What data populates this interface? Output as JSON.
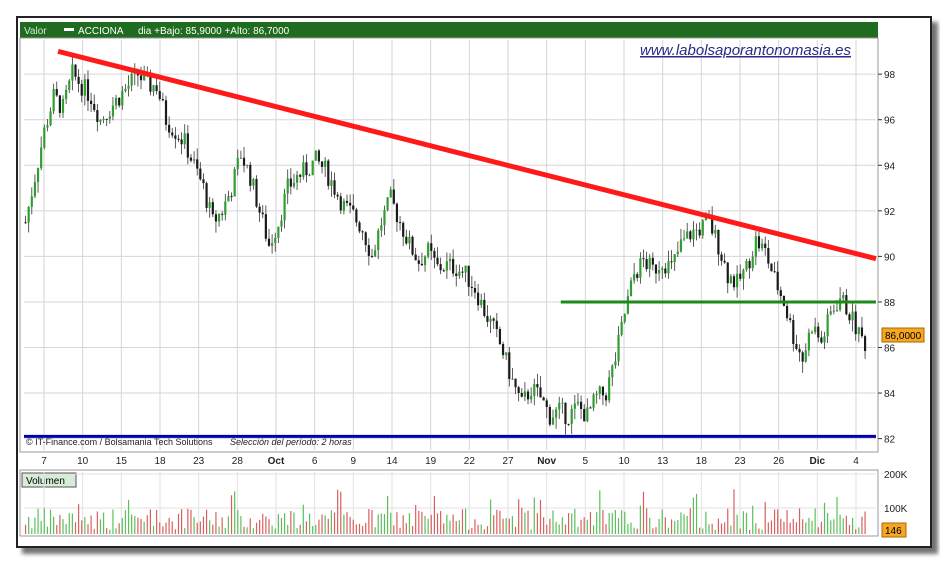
{
  "header": {
    "valor_label": "Valor",
    "symbol": "ACCIONA",
    "info": "dia +Bajo: 85,9000 +Alto: 86,7000"
  },
  "watermark": "www.labolsaporantonomasia.es",
  "footer_credit": "© IT-Finance.com / Bolsamania Tech Solutions",
  "footer_period": "Selección del período: 2 horas",
  "last_price_label": "86,0000",
  "volume_label": "Volumen",
  "last_volume_label": "146",
  "colors": {
    "header_green": "#1f6b1f",
    "candle_up": "#2e9e2e",
    "candle_down": "#1a1a1a",
    "resistance": "#ff1a1a",
    "support": "#1a8a1a",
    "floor": "#0000b0",
    "vol_up": "#5cbf5c",
    "vol_down": "#d96060",
    "price_badge": "#f5a623"
  },
  "chart_data": {
    "type": "candlestick",
    "x_tick_labels": [
      "7",
      "10",
      "15",
      "18",
      "23",
      "28",
      "Oct",
      "6",
      "9",
      "14",
      "19",
      "22",
      "27",
      "Nov",
      "5",
      "10",
      "13",
      "18",
      "23",
      "26",
      "Dic",
      "4"
    ],
    "y_ticks": [
      82,
      84,
      86,
      88,
      90,
      92,
      94,
      96,
      98
    ],
    "ylim": [
      81.5,
      99.5
    ],
    "volume_ticks": [
      "100K",
      "200K"
    ],
    "price_path": [
      [
        0,
        91.5
      ],
      [
        3,
        93.5
      ],
      [
        6,
        95.5
      ],
      [
        9,
        97
      ],
      [
        12,
        96.5
      ],
      [
        15,
        98
      ],
      [
        18,
        97.5
      ],
      [
        21,
        97
      ],
      [
        24,
        96
      ],
      [
        27,
        96.5
      ],
      [
        30,
        97
      ],
      [
        33,
        97.5
      ],
      [
        36,
        98
      ],
      [
        39,
        97.5
      ],
      [
        42,
        97.5
      ],
      [
        45,
        96
      ],
      [
        48,
        95.5
      ],
      [
        51,
        95
      ],
      [
        54,
        94
      ],
      [
        57,
        93
      ],
      [
        60,
        91.5
      ],
      [
        63,
        92
      ],
      [
        66,
        93
      ],
      [
        69,
        94.5
      ],
      [
        72,
        93.5
      ],
      [
        75,
        92
      ],
      [
        78,
        90.5
      ],
      [
        81,
        91.5
      ],
      [
        84,
        93
      ],
      [
        87,
        93.5
      ],
      [
        90,
        93.8
      ],
      [
        93,
        94.2
      ],
      [
        96,
        93.8
      ],
      [
        99,
        93
      ],
      [
        102,
        92.2
      ],
      [
        105,
        91.8
      ],
      [
        108,
        91.2
      ],
      [
        111,
        90
      ],
      [
        114,
        91.5
      ],
      [
        117,
        92.5
      ],
      [
        120,
        91.5
      ],
      [
        123,
        90.5
      ],
      [
        126,
        89.8
      ],
      [
        129,
        90.2
      ],
      [
        132,
        89.5
      ],
      [
        135,
        89.6
      ],
      [
        138,
        89.5
      ],
      [
        141,
        89.2
      ],
      [
        144,
        88.6
      ],
      [
        147,
        87.6
      ],
      [
        150,
        86.8
      ],
      [
        153,
        85.8
      ],
      [
        156,
        84.5
      ],
      [
        159,
        83.5
      ],
      [
        162,
        84.2
      ],
      [
        165,
        83.8
      ],
      [
        168,
        83
      ],
      [
        171,
        83.2
      ],
      [
        174,
        83
      ],
      [
        177,
        83.4
      ],
      [
        180,
        83
      ],
      [
        183,
        83.8
      ],
      [
        186,
        84
      ],
      [
        189,
        85.5
      ],
      [
        192,
        87.5
      ],
      [
        195,
        89.2
      ],
      [
        198,
        89.8
      ],
      [
        201,
        89.4
      ],
      [
        204,
        89.8
      ],
      [
        207,
        89.5
      ],
      [
        210,
        90.5
      ],
      [
        213,
        91
      ],
      [
        216,
        91.2
      ],
      [
        219,
        91.5
      ],
      [
        222,
        90.5
      ],
      [
        225,
        89.2
      ],
      [
        228,
        88.8
      ],
      [
        231,
        89.5
      ],
      [
        234,
        90.7
      ],
      [
        237,
        90.2
      ],
      [
        240,
        89
      ],
      [
        243,
        88
      ],
      [
        246,
        86.5
      ],
      [
        249,
        85.5
      ],
      [
        252,
        87
      ],
      [
        255,
        86.2
      ],
      [
        258,
        87.5
      ],
      [
        261,
        88.2
      ],
      [
        264,
        87.5
      ],
      [
        267,
        86.6
      ],
      [
        270,
        86
      ]
    ],
    "total_bars": 273,
    "trendlines": [
      {
        "name": "resistance",
        "color": "#ff1a1a",
        "x0": 0.04,
        "y0": 99.0,
        "x1": 1.0,
        "y1": 89.9
      },
      {
        "name": "support",
        "color": "#1a8a1a",
        "x0": 0.63,
        "y0": 88.0,
        "x1": 1.0,
        "y1": 88.0
      },
      {
        "name": "floor",
        "color": "#0000b0",
        "x0": 0.0,
        "y0": 82.1,
        "x1": 1.0,
        "y1": 82.1
      }
    ]
  }
}
